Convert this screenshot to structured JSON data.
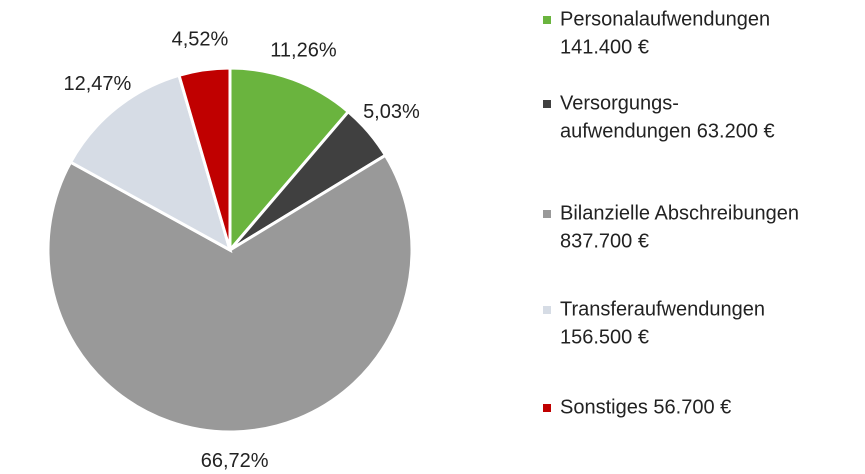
{
  "chart_data": {
    "type": "pie",
    "categories": [
      [
        "Personalaufwendungen",
        "141.400 €"
      ],
      [
        "Versorgungs-",
        "aufwendungen  63.200 €"
      ],
      [
        "Bilanzielle Abschreibungen",
        "837.700 €"
      ],
      [
        "Transferaufwendungen",
        "156.500 €"
      ],
      [
        "Sonstiges 56.700 €"
      ]
    ],
    "values": [
      11.26,
      5.03,
      66.72,
      12.47,
      4.52
    ],
    "value_labels": [
      "11,26%",
      "5,03%",
      "66,72%",
      "12,47%",
      "4,52%"
    ],
    "colors": [
      "#6ab43e",
      "#404040",
      "#999999",
      "#d6dce5",
      "#c00000"
    ],
    "legend": "right"
  }
}
